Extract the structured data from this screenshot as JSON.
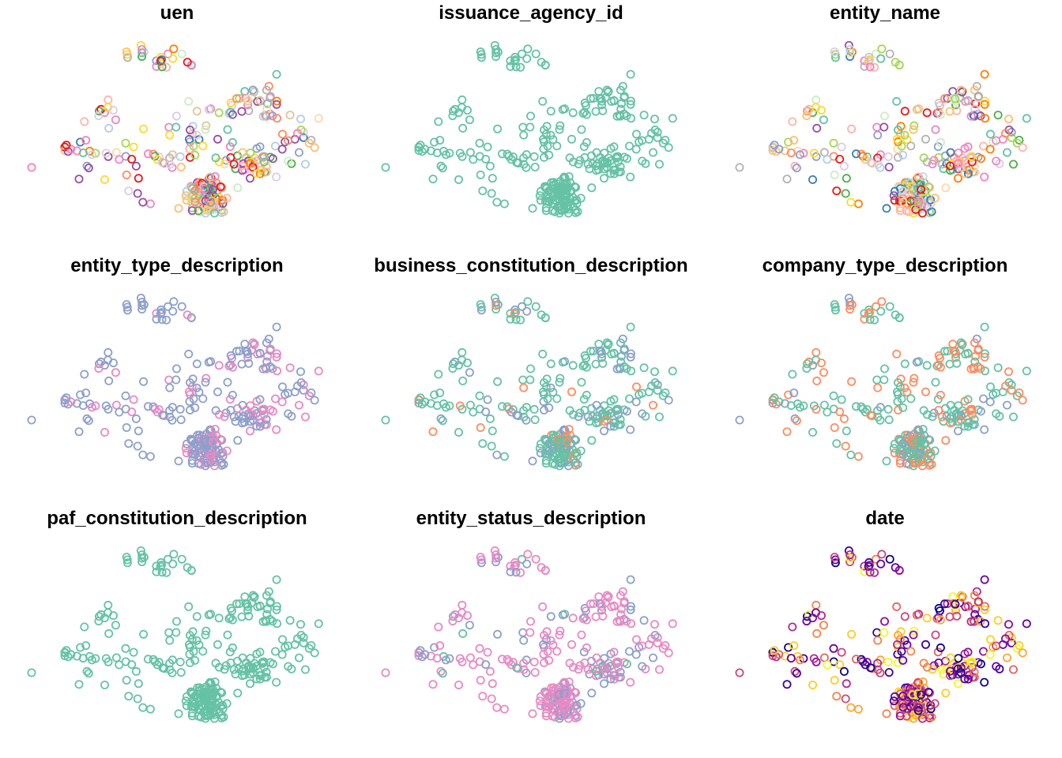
{
  "chart_data": [
    {
      "type": "scatter",
      "title": "uen",
      "palette": "mixed"
    },
    {
      "type": "scatter",
      "title": "issuance_agency_id",
      "palette": "single_green"
    },
    {
      "type": "scatter",
      "title": "entity_name",
      "palette": "mixed"
    },
    {
      "type": "scatter",
      "title": "entity_type_description",
      "palette": "purple_pink"
    },
    {
      "type": "scatter",
      "title": "business_constitution_description",
      "palette": "green_purple_orange"
    },
    {
      "type": "scatter",
      "title": "company_type_description",
      "palette": "green_orange_purple"
    },
    {
      "type": "scatter",
      "title": "paf_constitution_description",
      "palette": "single_green"
    },
    {
      "type": "scatter",
      "title": "entity_status_description",
      "palette": "pink_purple_green"
    },
    {
      "type": "scatter",
      "title": "date",
      "palette": "plasma"
    }
  ],
  "colors": {
    "green": "#66c2a5",
    "orange": "#fc8d62",
    "purple": "#8da0cb",
    "pink": "#e78ac3",
    "mixed": [
      "#66c2a5",
      "#fc8d62",
      "#8da0cb",
      "#e78ac3",
      "#a6d854",
      "#ffd92f",
      "#e5c494",
      "#b3b3b3",
      "#fbb4ae",
      "#b3cde3",
      "#ccebc5",
      "#decbe4",
      "#fed9a6",
      "#f781bf",
      "#4daf4a",
      "#984ea3",
      "#ff7f00",
      "#e41a1c",
      "#377eb8",
      "#fdbf6f"
    ],
    "plasma": [
      "#0d0887",
      "#3e049c",
      "#6a00a8",
      "#8f0da4",
      "#b12a90",
      "#cc4778",
      "#e16462",
      "#f2844b",
      "#fca636",
      "#fcce25",
      "#f0f921"
    ]
  },
  "ranges": {
    "xlim": [
      -1,
      1
    ],
    "ylim": [
      -1,
      1
    ]
  }
}
